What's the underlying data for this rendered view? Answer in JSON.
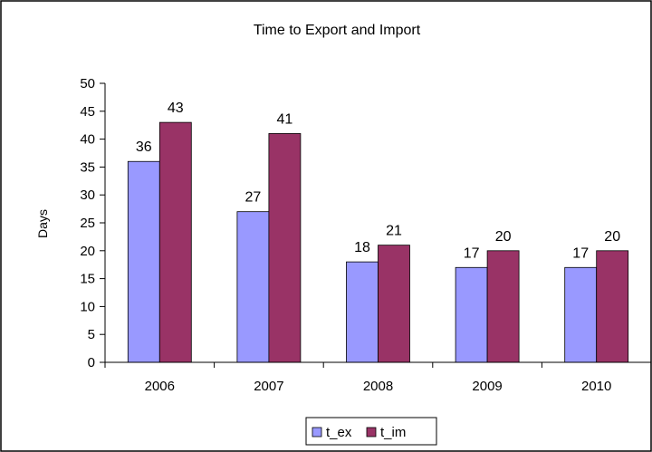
{
  "chart_data": {
    "type": "bar",
    "title": "Time to Export and Import",
    "xlabel": "",
    "ylabel": "Days",
    "categories": [
      "2006",
      "2007",
      "2008",
      "2009",
      "2010"
    ],
    "series": [
      {
        "name": "t_ex",
        "values": [
          36,
          27,
          18,
          17,
          17
        ],
        "color": "#9999ff"
      },
      {
        "name": "t_im",
        "values": [
          43,
          41,
          21,
          20,
          20
        ],
        "color": "#993366"
      }
    ],
    "ylim": [
      0,
      50
    ],
    "y_ticks": [
      "0",
      "5",
      "10",
      "15",
      "20",
      "25",
      "30",
      "35",
      "40",
      "45",
      "50"
    ],
    "grid": false,
    "legend_position": "bottom-center",
    "data_labels": true
  }
}
